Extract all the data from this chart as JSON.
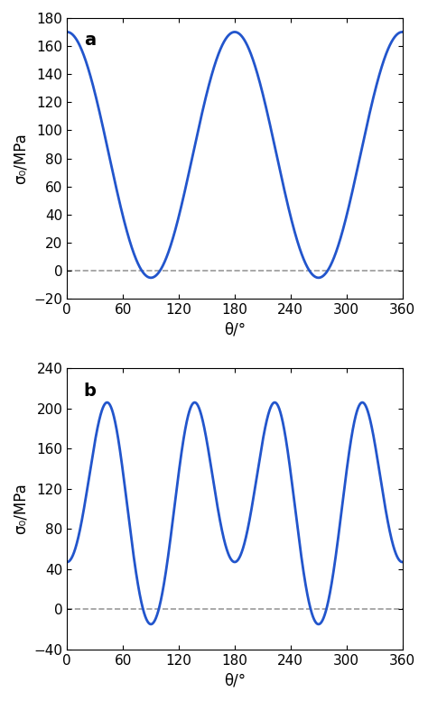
{
  "line_color": "#2255cc",
  "dashed_color": "#999999",
  "fig_width": 4.74,
  "fig_height": 7.77,
  "panel_a": {
    "label": "a",
    "A": 82.5,
    "B": 87.5,
    "ylim": [
      -20,
      180
    ],
    "yticks": [
      -20,
      0,
      20,
      40,
      60,
      80,
      100,
      120,
      140,
      160,
      180
    ],
    "ylabel": "σ₀/MPa",
    "xlabel": "θ/°",
    "xlim": [
      0,
      360
    ],
    "xticks": [
      0,
      60,
      120,
      180,
      240,
      300,
      360
    ]
  },
  "panel_b": {
    "label": "b",
    "A_b": 47.0,
    "B_b": 31.0,
    "C_b": -94.5,
    "D_b": 0.0,
    "E_b": 0.0,
    "ylim": [
      -40,
      240
    ],
    "yticks": [
      -40,
      0,
      40,
      80,
      120,
      160,
      200,
      240
    ],
    "ylabel": "σ₀/MPa",
    "xlabel": "θ/°",
    "xlim": [
      0,
      360
    ],
    "xticks": [
      0,
      60,
      120,
      180,
      240,
      300,
      360
    ]
  }
}
